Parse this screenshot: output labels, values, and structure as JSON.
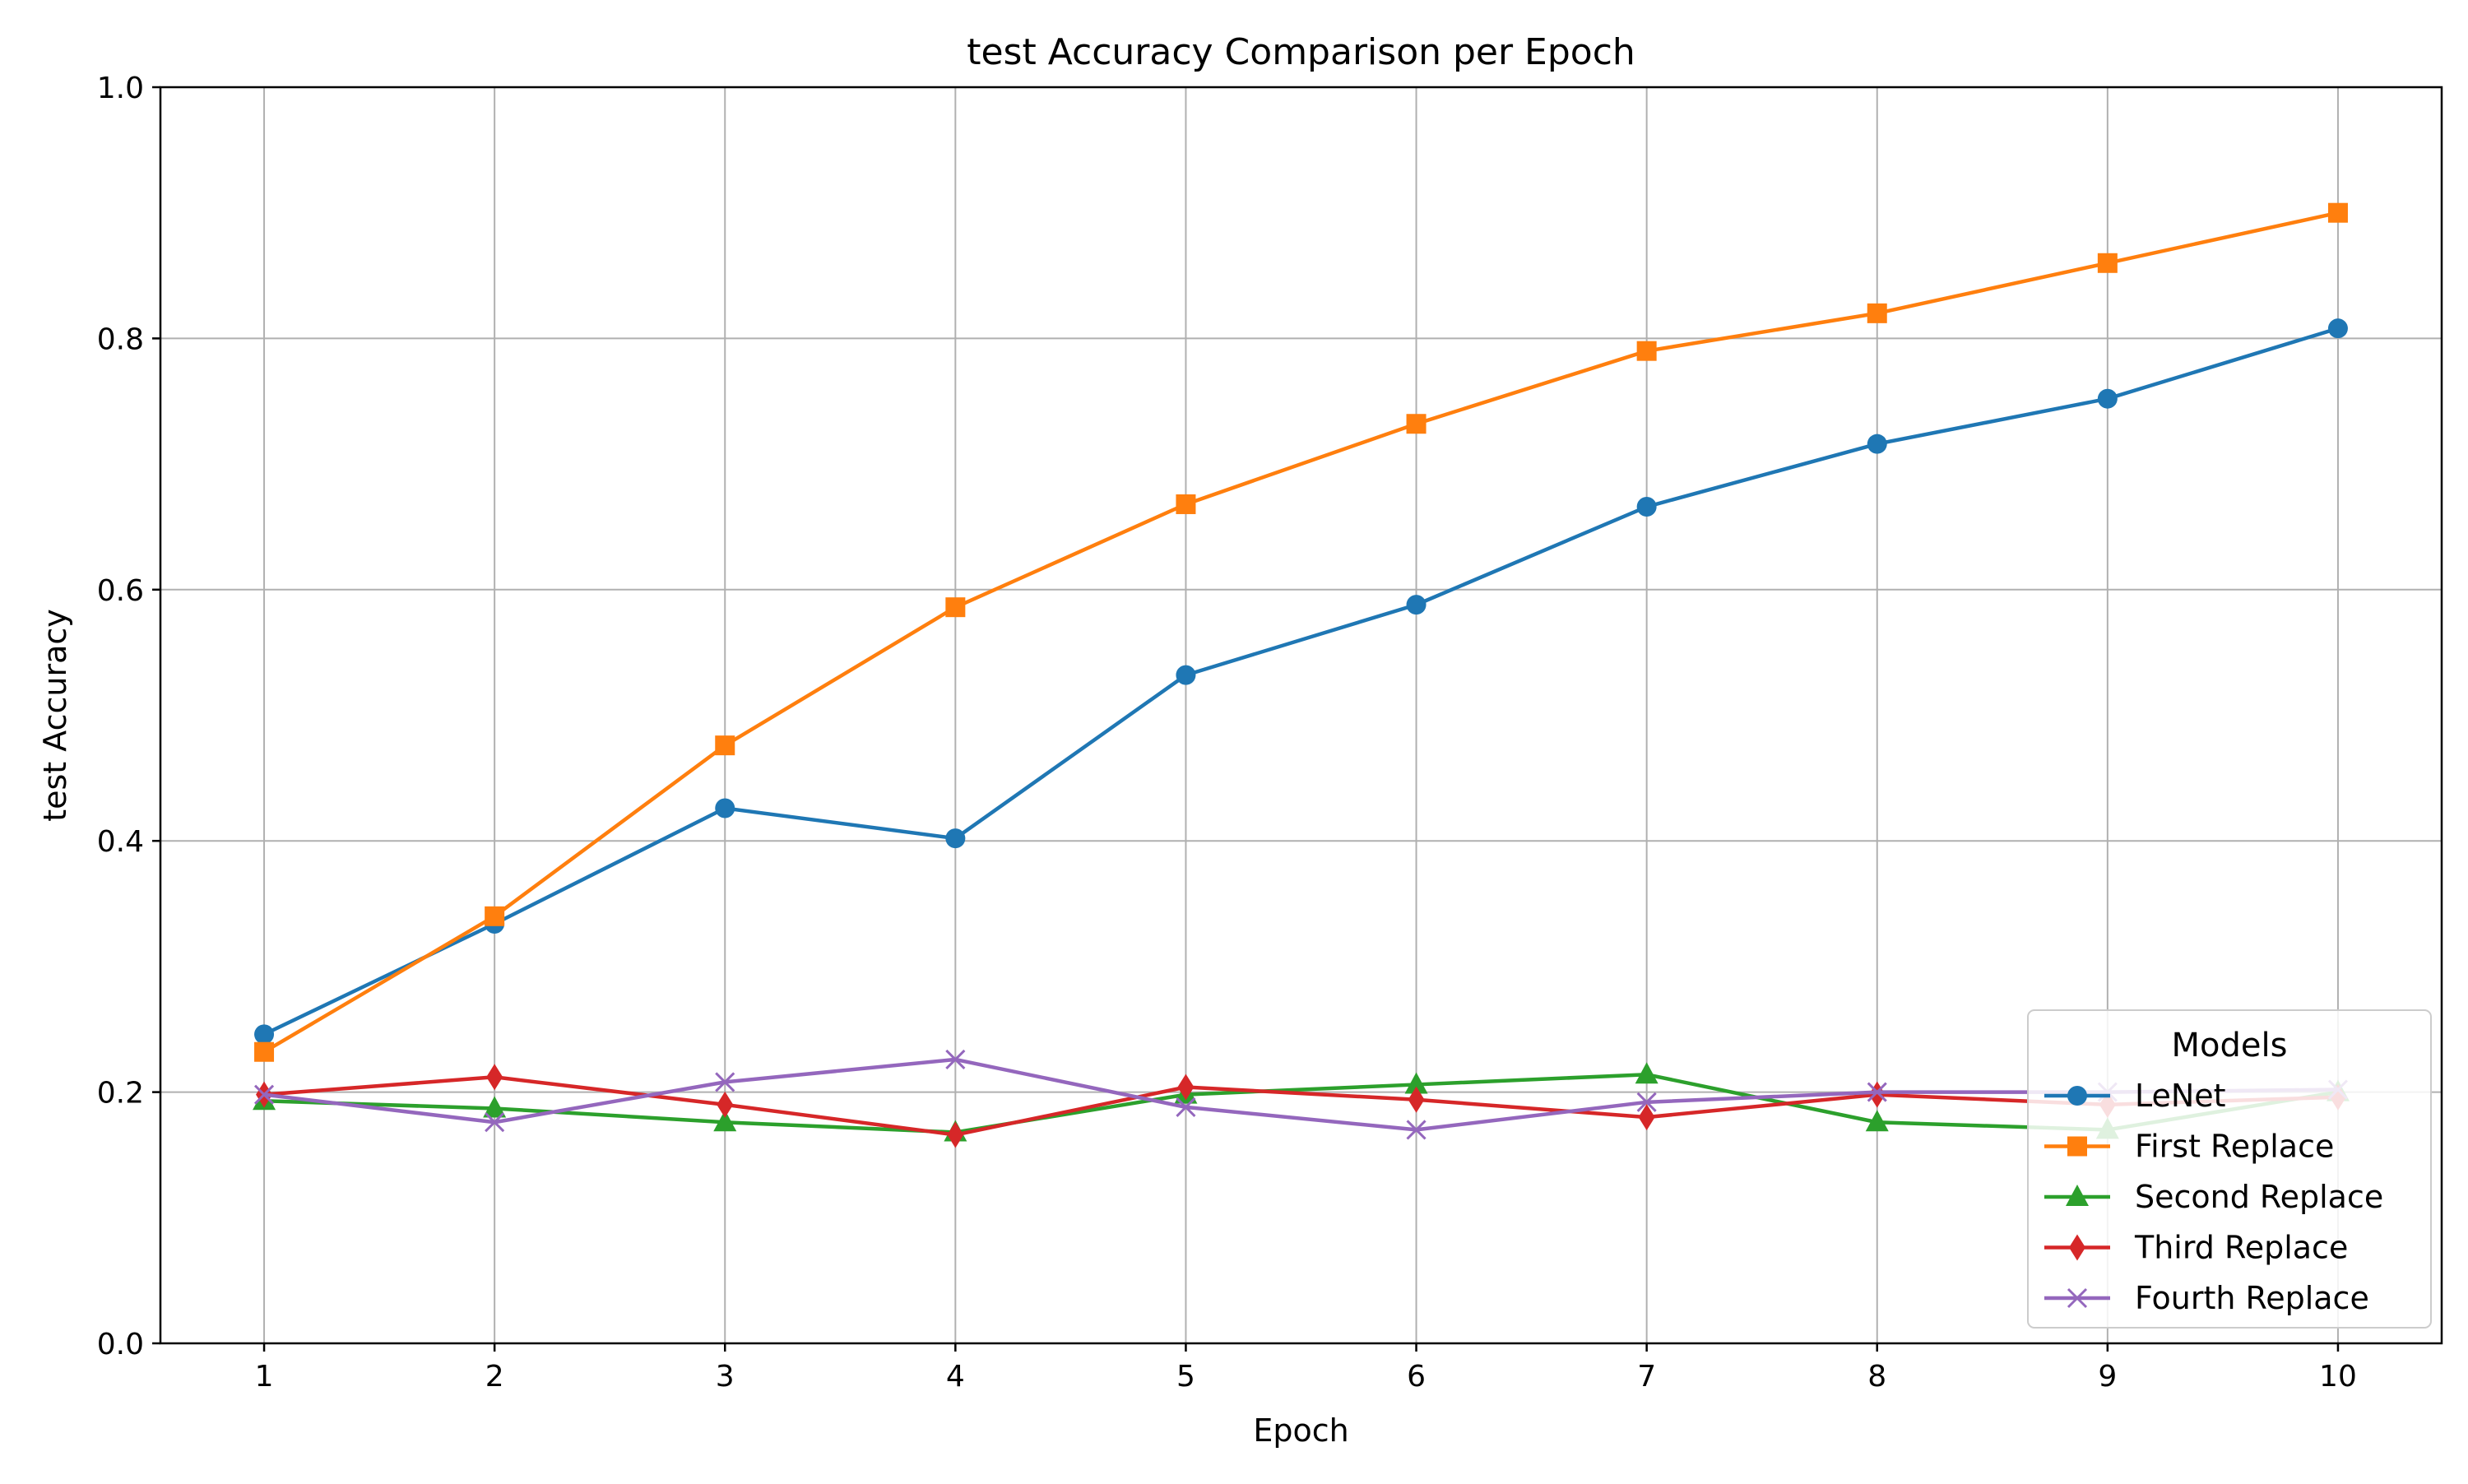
{
  "chart_data": {
    "type": "line",
    "title": "test Accuracy Comparison per Epoch",
    "xlabel": "Epoch",
    "ylabel": "test Accuracy",
    "x": [
      1,
      2,
      3,
      4,
      5,
      6,
      7,
      8,
      9,
      10
    ],
    "xlim": [
      0.55,
      10.45
    ],
    "ylim": [
      0.0,
      1.0
    ],
    "xticks": [
      "1",
      "2",
      "3",
      "4",
      "5",
      "6",
      "7",
      "8",
      "9",
      "10"
    ],
    "yticks": [
      "0.0",
      "0.2",
      "0.4",
      "0.6",
      "0.8",
      "1.0"
    ],
    "grid": true,
    "legend": {
      "title": "Models",
      "placement": "lower-right"
    },
    "series": [
      {
        "name": "LeNet",
        "color": "#1f77b4",
        "marker": "circle",
        "values": [
          0.246,
          0.334,
          0.426,
          0.402,
          0.532,
          0.588,
          0.666,
          0.716,
          0.752,
          0.808
        ]
      },
      {
        "name": "First Replace",
        "color": "#ff7f0e",
        "marker": "square",
        "values": [
          0.232,
          0.34,
          0.476,
          0.586,
          0.668,
          0.732,
          0.79,
          0.82,
          0.86,
          0.9
        ]
      },
      {
        "name": "Second Replace",
        "color": "#2ca02c",
        "marker": "triangle",
        "values": [
          0.193,
          0.187,
          0.176,
          0.168,
          0.198,
          0.206,
          0.214,
          0.176,
          0.17,
          0.2
        ]
      },
      {
        "name": "Third Replace",
        "color": "#d62728",
        "marker": "diamond",
        "values": [
          0.198,
          0.212,
          0.19,
          0.166,
          0.204,
          0.194,
          0.18,
          0.198,
          0.19,
          0.196
        ]
      },
      {
        "name": "Fourth Replace",
        "color": "#9467bd",
        "marker": "x",
        "values": [
          0.198,
          0.176,
          0.208,
          0.226,
          0.188,
          0.17,
          0.192,
          0.2,
          0.2,
          0.202
        ]
      }
    ]
  }
}
